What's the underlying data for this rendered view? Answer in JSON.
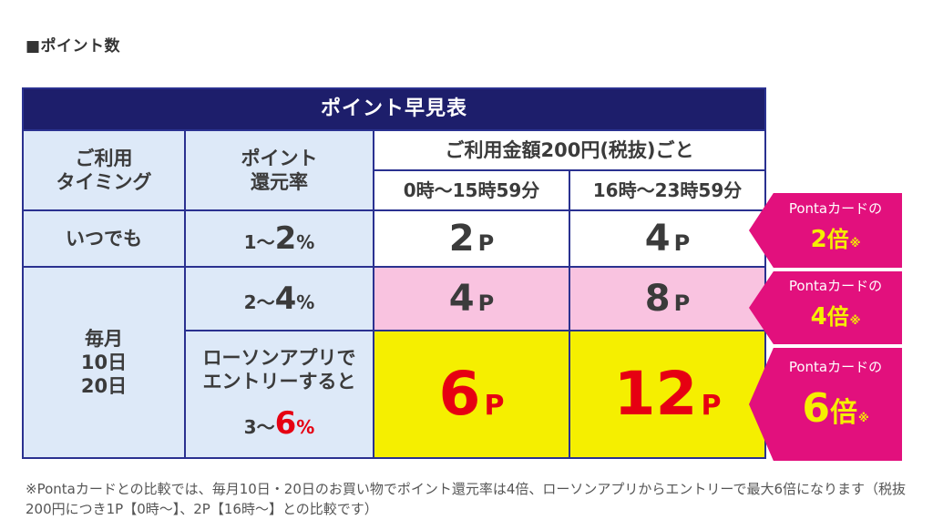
{
  "heading": "■ポイント数",
  "table": {
    "title": "ポイント早見表",
    "header": {
      "timing_line1": "ご利用",
      "timing_line2": "タイミング",
      "rate_line1": "ポイント",
      "rate_line2": "還元率",
      "amount": "ご利用金額200円(税抜)ごと",
      "time1": "0時〜15時59分",
      "time2": "16時〜23時59分"
    },
    "rows": [
      {
        "timing": "いつでも",
        "rate_small1": "1〜",
        "rate_big": "2",
        "rate_small2": "%",
        "p1": "2",
        "p2": "4"
      },
      {
        "rate_small1": "2〜",
        "rate_big": "4",
        "rate_small2": "%",
        "p1": "4",
        "p2": "8"
      },
      {
        "entry_line1": "ローソンアプリで",
        "entry_line2": "エントリーすると",
        "rate_small1": "3〜",
        "rate_big": "6",
        "rate_small2": "%",
        "p1": "6",
        "p2": "12"
      }
    ],
    "timing_day": {
      "line1": "毎月",
      "line2": "10日",
      "line3": "20日"
    },
    "p_unit": "P"
  },
  "badges": [
    {
      "top": "Pontaカードの",
      "num": "2",
      "x": "倍",
      "mark": "※"
    },
    {
      "top": "Pontaカードの",
      "num": "4",
      "x": "倍",
      "mark": "※"
    },
    {
      "top": "Pontaカードの",
      "num": "6",
      "x": "倍",
      "mark": "※"
    }
  ],
  "note": "※Pontaカードとの比較では、毎月10日・20日のお買い物でポイント還元率は4倍、ローソンアプリからエントリーで最大6倍になります（税抜200円につき1P【0時〜】、2P【16時〜】との比較です）",
  "colors": {
    "navy": "#1d1e6b",
    "light_blue": "#dde9f8",
    "pink": "#f9c3e0",
    "yellow": "#f5ef00",
    "magenta": "#e2107d",
    "red": "#e60012"
  }
}
